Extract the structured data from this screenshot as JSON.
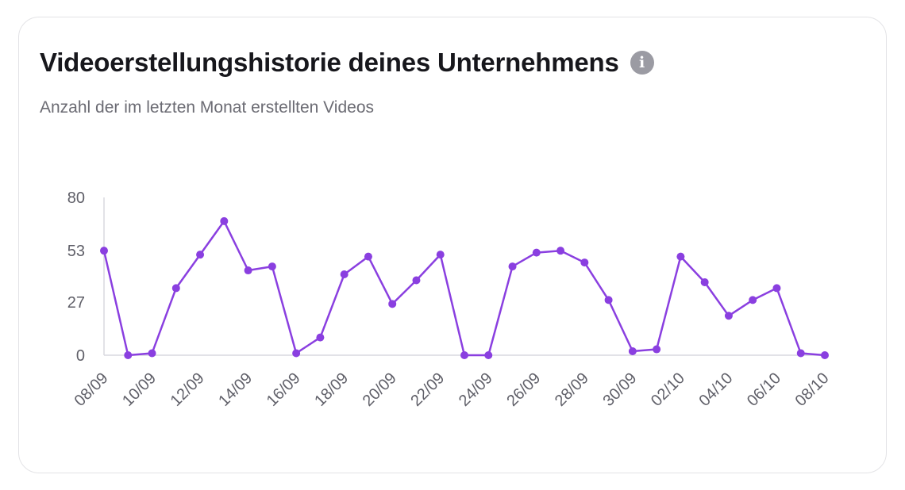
{
  "card": {
    "title": "Videoerstellungshistorie deines Unternehmens",
    "info_glyph": "i",
    "info_icon": "info-icon",
    "subtitle": "Anzahl der im letzten Monat erstellten Videos"
  },
  "colors": {
    "line": "#8a3fe0",
    "axis": "#d9d9df",
    "text": "#5f5f68"
  },
  "chart_data": {
    "type": "line",
    "title": "Videoerstellungshistorie deines Unternehmens",
    "subtitle": "Anzahl der im letzten Monat erstellten Videos",
    "xlabel": "",
    "ylabel": "",
    "ylim": [
      0,
      80
    ],
    "yticks": [
      0,
      27,
      53,
      80
    ],
    "grid": false,
    "x": [
      "08/09",
      "09/09",
      "10/09",
      "11/09",
      "12/09",
      "13/09",
      "14/09",
      "15/09",
      "16/09",
      "17/09",
      "18/09",
      "19/09",
      "20/09",
      "21/09",
      "22/09",
      "23/09",
      "24/09",
      "25/09",
      "26/09",
      "27/09",
      "28/09",
      "29/09",
      "30/09",
      "01/10",
      "02/10",
      "03/10",
      "04/10",
      "05/10",
      "06/10",
      "07/10",
      "08/10"
    ],
    "xticks": [
      "08/09",
      "10/09",
      "12/09",
      "14/09",
      "16/09",
      "18/09",
      "20/09",
      "22/09",
      "24/09",
      "26/09",
      "28/09",
      "30/09",
      "02/10",
      "04/10",
      "06/10",
      "08/10"
    ],
    "series": [
      {
        "name": "Videos",
        "values": [
          53,
          0,
          1,
          34,
          51,
          68,
          43,
          45,
          1,
          9,
          41,
          50,
          26,
          38,
          51,
          0,
          0,
          45,
          52,
          53,
          47,
          28,
          2,
          3,
          50,
          37,
          20,
          28,
          34,
          1,
          0
        ]
      }
    ]
  }
}
